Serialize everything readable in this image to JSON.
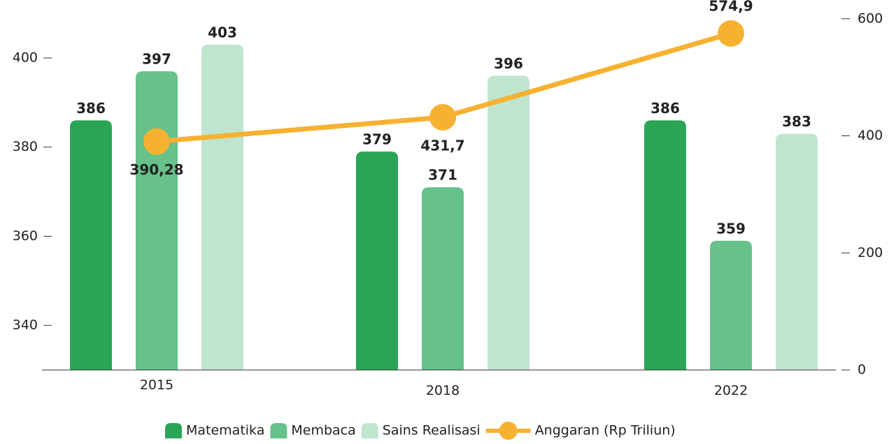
{
  "chart_data": {
    "type": "bar",
    "categories": [
      "2015",
      "2018",
      "2022"
    ],
    "series": [
      {
        "name": "Matematika",
        "color": "#2aa556",
        "values": [
          386,
          379,
          386
        ]
      },
      {
        "name": "Membaca",
        "color": "#66c18a",
        "values": [
          397,
          371,
          359
        ]
      },
      {
        "name": "Sains Realisasi",
        "color": "#c0e5cf",
        "values": [
          403,
          396,
          383
        ]
      },
      {
        "name": "Anggaran (Rp Triliun)",
        "type": "line",
        "axis": "y2",
        "color": "#f7b131",
        "values": [
          390.28,
          431.7,
          574.9
        ],
        "value_labels": [
          "390,28",
          "431,7",
          "574,9"
        ]
      }
    ],
    "ylim": [
      330,
      413
    ],
    "yticks": [
      340,
      360,
      380,
      400
    ],
    "y2lim": [
      0,
      632
    ],
    "y2ticks": [
      0,
      200,
      400,
      600
    ]
  }
}
